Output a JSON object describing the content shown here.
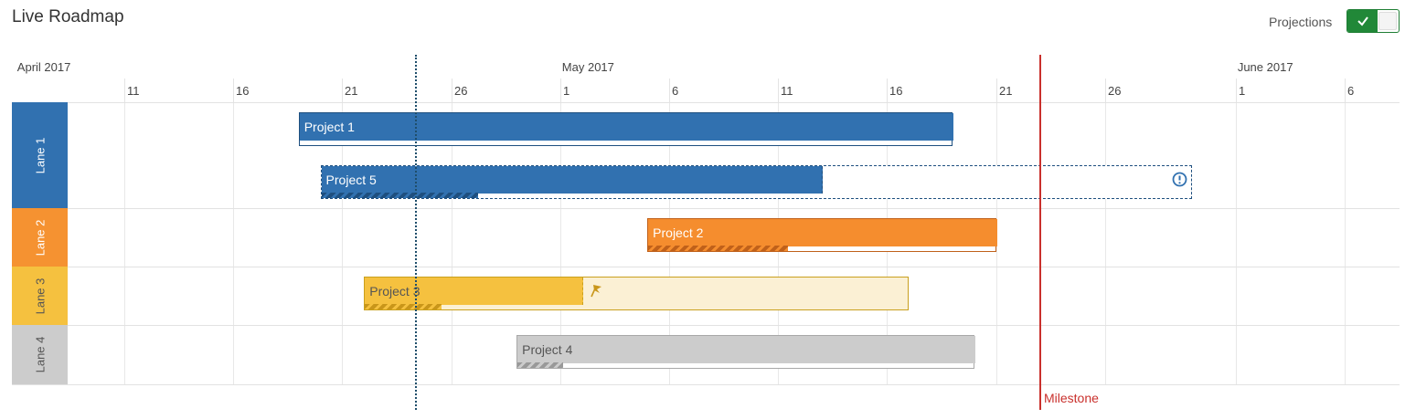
{
  "header": {
    "title": "Live Roadmap",
    "projections_label": "Projections",
    "projections_on": true
  },
  "timeline": {
    "months": [
      {
        "label": "April 2017",
        "day": "2017-04-06"
      },
      {
        "label": "May 2017",
        "day": "2017-05-01"
      },
      {
        "label": "June 2017",
        "day": "2017-06-01"
      }
    ],
    "days": [
      {
        "label": "11",
        "day": "2017-04-11"
      },
      {
        "label": "16",
        "day": "2017-04-16"
      },
      {
        "label": "21",
        "day": "2017-04-21"
      },
      {
        "label": "26",
        "day": "2017-04-26"
      },
      {
        "label": "1",
        "day": "2017-05-01"
      },
      {
        "label": "6",
        "day": "2017-05-06"
      },
      {
        "label": "11",
        "day": "2017-05-11"
      },
      {
        "label": "16",
        "day": "2017-05-16"
      },
      {
        "label": "21",
        "day": "2017-05-21"
      },
      {
        "label": "26",
        "day": "2017-05-26"
      },
      {
        "label": "1",
        "day": "2017-06-01"
      },
      {
        "label": "6",
        "day": "2017-06-06"
      }
    ]
  },
  "lanes": [
    {
      "label": "Lane 1",
      "color": "#3171b0",
      "text_color": "#ffffff"
    },
    {
      "label": "Lane 2",
      "color": "#f59231",
      "text_color": "#ffffff"
    },
    {
      "label": "Lane 3",
      "color": "#f5c13f",
      "text_color": "#555555"
    },
    {
      "label": "Lane 4",
      "color": "#cccccc",
      "text_color": "#555555"
    }
  ],
  "projects": [
    {
      "name": "Project 1",
      "lane": 1,
      "start": "2017-04-19",
      "end": "2017-05-19",
      "projected_end": null,
      "progress": 0,
      "icon": null
    },
    {
      "name": "Project 5",
      "lane": 1,
      "start": "2017-04-20",
      "end": "2017-05-13",
      "projected_end": "2017-05-30",
      "progress": 0.18,
      "icon": "alert-circle-icon"
    },
    {
      "name": "Project 2",
      "lane": 2,
      "start": "2017-05-05",
      "end": "2017-05-21",
      "projected_end": null,
      "progress": 0.4,
      "icon": null
    },
    {
      "name": "Project 3",
      "lane": 3,
      "start": "2017-04-22",
      "end": "2017-05-02",
      "projected_end": "2017-05-17",
      "progress": 0.14,
      "icon": "flag-icon"
    },
    {
      "name": "Project 4",
      "lane": 4,
      "start": "2017-04-29",
      "end": "2017-05-20",
      "projected_end": null,
      "progress": 0.1,
      "icon": null
    }
  ],
  "today": "2017-04-24",
  "milestone": {
    "label": "Milestone",
    "date": "2017-05-23"
  },
  "colors": {
    "lane1_bar": "#3171b0",
    "lane2_bar": "#f58d2e",
    "lane3_bar": "#f5c13f",
    "lane4_bar": "#cccccc",
    "milestone": "#c9302c",
    "today_line": "#1f4e6b",
    "toggle_on": "#218838"
  }
}
